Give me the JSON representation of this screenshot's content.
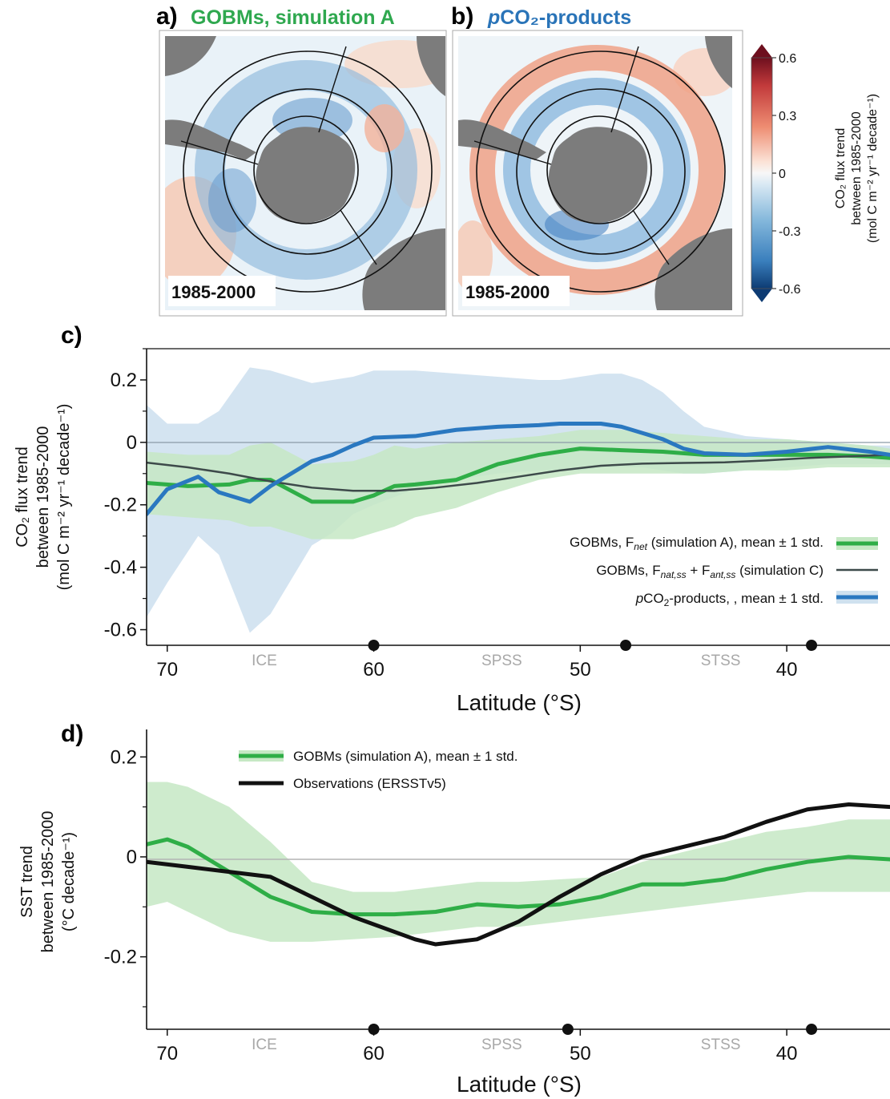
{
  "panel_a": {
    "label": "a)",
    "title": "GOBMs, simulation A",
    "period": "1985-2000",
    "title_color": "#2fa84f"
  },
  "panel_b": {
    "label": "b)",
    "title_italic": "p",
    "title": "CO₂-products",
    "period": "1985-2000",
    "title_color": "#2a74b8"
  },
  "colorbar": {
    "ticks": [
      "0.6",
      "0.3",
      "0",
      "-0.3",
      "-0.6"
    ],
    "label_lines": [
      "CO₂ flux trend",
      "between 1985-2000",
      "(mol C m⁻² yr⁻¹ decade⁻¹)"
    ],
    "range": [
      -0.6,
      0.6
    ]
  },
  "colors": {
    "green": "#2fae47",
    "green_band": "#c6e8c4",
    "blue": "#2a78c0",
    "blue_band": "#cfe1ef",
    "dark": "#3d4a4a",
    "black": "#111111"
  },
  "chart_data": [
    {
      "type": "line",
      "panel_label": "c)",
      "xlabel": "Latitude (°S)",
      "ylabel_lines": [
        "CO₂ flux trend",
        "between 1985-2000",
        "(mol C m⁻² yr⁻¹ decade⁻¹)"
      ],
      "x_inverted": true,
      "xlim": [
        71,
        35
      ],
      "ylim": [
        -0.65,
        0.3
      ],
      "xticks": [
        70,
        60,
        50,
        40
      ],
      "xtick_labels": [
        "70",
        "60",
        "50",
        "40"
      ],
      "yticks": [
        0.2,
        0,
        -0.2,
        -0.4,
        -0.6
      ],
      "ytick_labels": [
        "0.2",
        "0",
        "-0.2",
        "-0.4",
        "-0.6"
      ],
      "regions": [
        {
          "label": "ICE",
          "x": 65.3
        },
        {
          "label": "SPSS",
          "x": 53.8
        },
        {
          "label": "STSS",
          "x": 43.2
        }
      ],
      "boundary_markers": [
        60,
        47.8,
        38.8
      ],
      "legend": [
        "GOBMs, F_net (simulation A), mean ± 1 std.",
        "GOBMs, F_nat,ss + F_ant,ss (simulation C)",
        "pCO₂-products, , mean ± 1 std."
      ],
      "series": [
        {
          "name": "GOBMs, F_net (simulation A), mean ± 1 std.",
          "x": [
            71,
            69,
            67,
            66,
            65,
            63,
            61,
            60,
            59,
            58,
            56,
            54,
            52,
            50,
            48,
            46,
            44,
            42,
            40,
            38,
            36,
            35
          ],
          "y": [
            -0.13,
            -0.14,
            -0.135,
            -0.12,
            -0.12,
            -0.19,
            -0.19,
            -0.17,
            -0.14,
            -0.135,
            -0.12,
            -0.07,
            -0.04,
            -0.02,
            -0.025,
            -0.03,
            -0.04,
            -0.04,
            -0.04,
            -0.04,
            -0.045,
            -0.05
          ],
          "lower": [
            -0.23,
            -0.24,
            -0.25,
            -0.27,
            -0.27,
            -0.31,
            -0.31,
            -0.29,
            -0.27,
            -0.24,
            -0.21,
            -0.16,
            -0.12,
            -0.1,
            -0.1,
            -0.1,
            -0.1,
            -0.09,
            -0.09,
            -0.08,
            -0.08,
            -0.08
          ],
          "upper": [
            -0.03,
            -0.04,
            -0.04,
            -0.01,
            0.0,
            -0.07,
            -0.06,
            -0.04,
            -0.01,
            -0.02,
            0.0,
            0.01,
            0.02,
            0.04,
            0.04,
            0.03,
            0.02,
            0.01,
            0.01,
            0.0,
            -0.01,
            -0.02
          ]
        },
        {
          "name": "GOBMs, F_nat,ss + F_ant,ss (simulation C)",
          "x": [
            71,
            69,
            67,
            65,
            63,
            61,
            59,
            57,
            55,
            53,
            51,
            49,
            47,
            45,
            43,
            41,
            39,
            37,
            35
          ],
          "y": [
            -0.065,
            -0.08,
            -0.1,
            -0.125,
            -0.145,
            -0.155,
            -0.155,
            -0.145,
            -0.13,
            -0.11,
            -0.09,
            -0.075,
            -0.068,
            -0.066,
            -0.064,
            -0.058,
            -0.05,
            -0.045,
            -0.04
          ]
        },
        {
          "name": "pCO₂-products, , mean ± 1 std.",
          "x": [
            71,
            70,
            68.5,
            67.5,
            66,
            65,
            63,
            62,
            61,
            60,
            58,
            56,
            54,
            52,
            51,
            50,
            49,
            48,
            47,
            46,
            45,
            44,
            42,
            40,
            38,
            36,
            35
          ],
          "y": [
            -0.23,
            -0.15,
            -0.11,
            -0.16,
            -0.19,
            -0.14,
            -0.06,
            -0.04,
            -0.01,
            0.015,
            0.02,
            0.04,
            0.05,
            0.055,
            0.06,
            0.06,
            0.06,
            0.05,
            0.03,
            0.01,
            -0.02,
            -0.035,
            -0.04,
            -0.03,
            -0.015,
            -0.03,
            -0.04
          ],
          "lower": [
            -0.56,
            -0.45,
            -0.3,
            -0.36,
            -0.61,
            -0.55,
            -0.33,
            -0.29,
            -0.23,
            -0.2,
            -0.15,
            -0.12,
            -0.1,
            -0.09,
            -0.09,
            -0.09,
            -0.08,
            -0.08,
            -0.08,
            -0.09,
            -0.1,
            -0.1,
            -0.09,
            -0.08,
            -0.07,
            -0.07,
            -0.07
          ],
          "upper": [
            0.12,
            0.06,
            0.06,
            0.1,
            0.24,
            0.23,
            0.19,
            0.2,
            0.21,
            0.23,
            0.23,
            0.22,
            0.21,
            0.2,
            0.2,
            0.21,
            0.22,
            0.22,
            0.2,
            0.16,
            0.1,
            0.05,
            0.02,
            0.01,
            0.0,
            -0.01,
            -0.01
          ]
        }
      ]
    },
    {
      "type": "line",
      "panel_label": "d)",
      "xlabel": "Latitude (°S)",
      "ylabel_lines": [
        "SST trend",
        "between 1985-2000",
        "(°C decade⁻¹)"
      ],
      "x_inverted": true,
      "xlim": [
        71,
        35
      ],
      "ylim": [
        -0.345,
        0.255
      ],
      "xticks": [
        70,
        60,
        50,
        40
      ],
      "xtick_labels": [
        "70",
        "60",
        "50",
        "40"
      ],
      "yticks": [
        0.2,
        0,
        -0.2
      ],
      "ytick_labels": [
        "0.2",
        "0",
        "-0.2"
      ],
      "regions": [
        {
          "label": "ICE",
          "x": 65.3
        },
        {
          "label": "SPSS",
          "x": 53.8
        },
        {
          "label": "STSS",
          "x": 43.2
        }
      ],
      "boundary_markers": [
        60,
        50.6,
        38.8
      ],
      "legend": [
        "GOBMs (simulation A), mean ± 1 std.",
        "Observations (ERSSTv5)"
      ],
      "series": [
        {
          "name": "GOBMs (simulation A), mean ± 1 std.",
          "x": [
            71,
            70,
            69,
            67,
            65,
            63,
            61,
            59,
            57,
            55,
            53,
            51,
            49,
            47,
            45,
            43,
            41,
            39,
            37,
            35
          ],
          "y": [
            0.025,
            0.035,
            0.02,
            -0.03,
            -0.08,
            -0.11,
            -0.115,
            -0.115,
            -0.11,
            -0.095,
            -0.1,
            -0.095,
            -0.08,
            -0.055,
            -0.055,
            -0.045,
            -0.025,
            -0.01,
            0.0,
            -0.005
          ],
          "lower": [
            -0.1,
            -0.09,
            -0.11,
            -0.15,
            -0.17,
            -0.17,
            -0.165,
            -0.16,
            -0.15,
            -0.14,
            -0.14,
            -0.13,
            -0.12,
            -0.11,
            -0.1,
            -0.09,
            -0.08,
            -0.07,
            -0.07,
            -0.07
          ],
          "upper": [
            0.15,
            0.15,
            0.14,
            0.1,
            0.03,
            -0.05,
            -0.07,
            -0.07,
            -0.06,
            -0.05,
            -0.05,
            -0.045,
            -0.04,
            -0.01,
            0.01,
            0.03,
            0.05,
            0.06,
            0.075,
            0.075
          ]
        },
        {
          "name": "Observations (ERSSTv5)",
          "x": [
            71,
            69,
            67,
            65,
            63,
            61,
            59,
            58,
            57,
            55,
            53,
            51,
            49,
            47,
            45,
            43,
            41,
            39,
            37,
            35
          ],
          "y": [
            -0.01,
            -0.02,
            -0.03,
            -0.04,
            -0.08,
            -0.12,
            -0.15,
            -0.165,
            -0.175,
            -0.165,
            -0.13,
            -0.08,
            -0.035,
            0.0,
            0.02,
            0.04,
            0.07,
            0.095,
            0.105,
            0.1
          ]
        }
      ]
    }
  ]
}
